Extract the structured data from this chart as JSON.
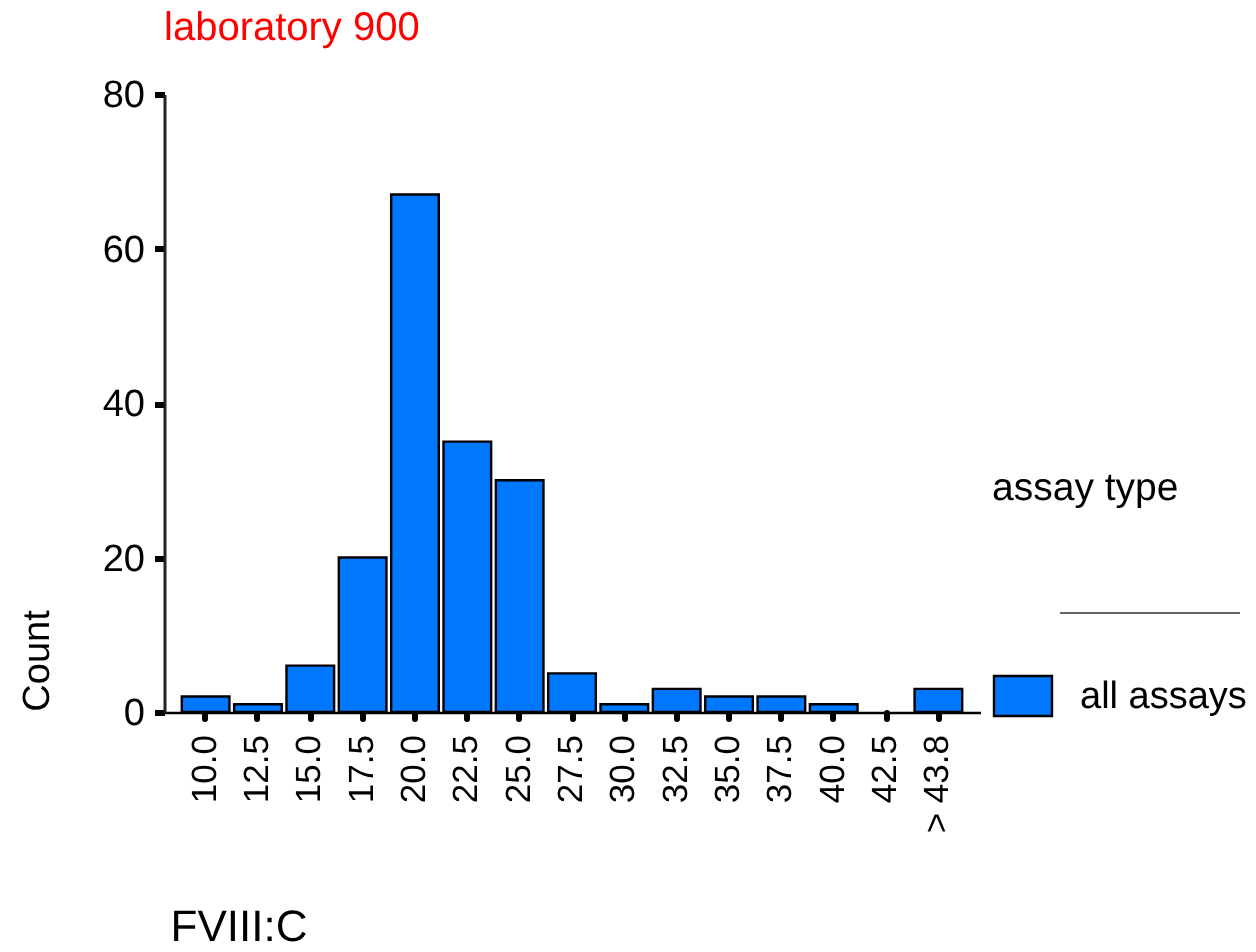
{
  "chart_data": {
    "type": "bar",
    "title": "laboratory 900",
    "xlabel": "FVIII:C",
    "ylabel": "Count",
    "legend_title": "assay type",
    "categories": [
      "10.0",
      "12.5",
      "15.0",
      "17.5",
      "20.0",
      "22.5",
      "25.0",
      "27.5",
      "30.0",
      "32.5",
      "35.0",
      "37.5",
      "40.0",
      "42.5",
      "> 43.8"
    ],
    "series": [
      {
        "name": "all assays",
        "color": "#0077ff",
        "values": [
          2,
          1,
          6,
          20,
          67,
          35,
          30,
          5,
          1,
          3,
          2,
          2,
          1,
          0,
          3
        ]
      }
    ],
    "ylim": [
      0,
      80
    ],
    "yticks": [
      0,
      20,
      40,
      60,
      80
    ],
    "grid": false,
    "legend": "right"
  }
}
